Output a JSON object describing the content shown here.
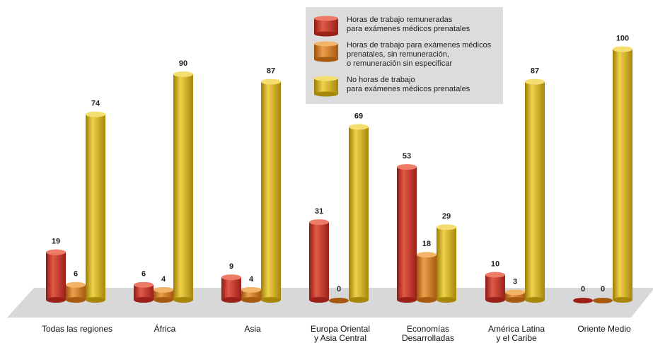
{
  "chart_data": {
    "type": "bar",
    "categories": [
      "Todas las regiones",
      "África",
      "Asia",
      "Europa Oriental\ny Asia Central",
      "Economías\nDesarrolladas",
      "América Latina\ny el Caribe",
      "Oriente Medio"
    ],
    "series": [
      {
        "name": "Horas de trabajo remuneradas\npara exámenes médicos prenatales",
        "values": [
          19,
          6,
          9,
          31,
          53,
          10,
          0
        ],
        "color": "#c83228"
      },
      {
        "name": "Horas de trabajo para exámenes médicos\nprenatales, sin remuneración,\no remuneración sin especificar",
        "values": [
          6,
          4,
          4,
          0,
          18,
          3,
          0
        ],
        "color": "#d27a1e"
      },
      {
        "name": "No horas de trabajo\npara exámenes médicos prenatales",
        "values": [
          74,
          90,
          87,
          69,
          29,
          87,
          100
        ],
        "color": "#d6b014"
      }
    ],
    "ylim": [
      0,
      100
    ],
    "grid": false,
    "legend": "top-right"
  }
}
